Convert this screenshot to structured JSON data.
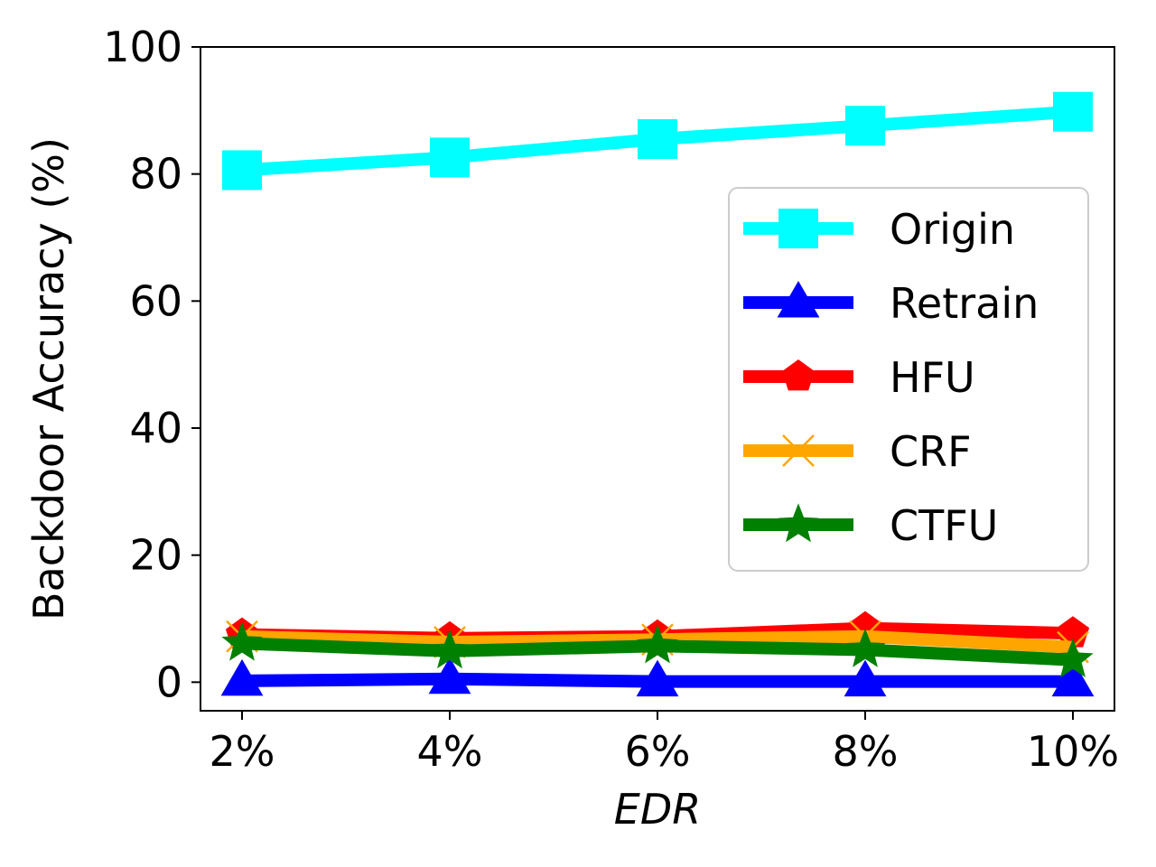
{
  "chart_data": {
    "type": "line",
    "title": "",
    "xlabel": "EDR",
    "ylabel": "Backdoor Accuracy (%)",
    "categories": [
      "2%",
      "4%",
      "6%",
      "8%",
      "10%"
    ],
    "yticks": [
      "0",
      "20",
      "40",
      "60",
      "80",
      "100"
    ],
    "ylim": [
      -4.5,
      100
    ],
    "grid": false,
    "legend_position": "center-right",
    "series": [
      {
        "name": "Origin",
        "color": "#00ffff",
        "marker": "square",
        "values": [
          80.6,
          82.6,
          85.5,
          87.6,
          89.8
        ]
      },
      {
        "name": "Retrain",
        "color": "#0000ff",
        "marker": "triangle-up",
        "values": [
          0.2,
          0.5,
          0.1,
          0.1,
          0.1
        ]
      },
      {
        "name": "HFU",
        "color": "#ff0000",
        "marker": "pentagon",
        "values": [
          7.5,
          6.9,
          7.2,
          8.5,
          7.7
        ]
      },
      {
        "name": "CRF",
        "color": "#ffa500",
        "marker": "x",
        "values": [
          7.2,
          6.3,
          6.7,
          7.2,
          5.5
        ]
      },
      {
        "name": "CTFU",
        "color": "#008000",
        "marker": "star",
        "values": [
          6.1,
          4.9,
          5.7,
          5.1,
          3.5
        ]
      }
    ]
  }
}
